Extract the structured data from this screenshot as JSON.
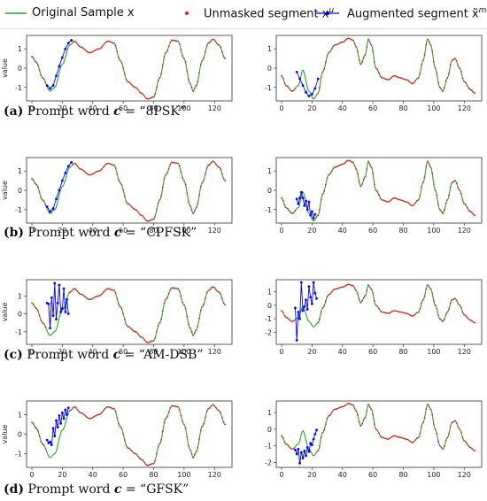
{
  "legend": {
    "original": "Original Sample x",
    "unmasked": "Unmasked segment x",
    "unmasked_sup": "u",
    "augmented": "Augmented segment x̃",
    "augmented_sup": "m"
  },
  "colors": {
    "original": "#2ca02c",
    "unmasked": "#d62728",
    "augmented": "#0000ff"
  },
  "captions": [
    {
      "label": "(a)",
      "text": "Prompt word",
      "var": "c",
      "value": "= “8PSK”"
    },
    {
      "label": "(b)",
      "text": "Prompt word",
      "var": "c",
      "value": "= “CPFSK”"
    },
    {
      "label": "(c)",
      "text": "Prompt word",
      "var": "c",
      "value": "= “AM-DSB”"
    },
    {
      "label": "(d)",
      "text": "Prompt word",
      "var": "c",
      "value": "= “GFSK”"
    }
  ],
  "chart_data": [
    {
      "type": "line",
      "row": 0,
      "col": 0,
      "ylabel": "value",
      "xticks": [
        0,
        20,
        40,
        60,
        80,
        100,
        120
      ],
      "yticks": [
        -1,
        0,
        1
      ],
      "ylim": [
        -1.7,
        1.7
      ],
      "base": "left",
      "aug": [
        [
          10,
          -0.9
        ],
        [
          12,
          -1.05
        ],
        [
          14,
          -0.9
        ],
        [
          16,
          -0.4
        ],
        [
          18,
          0.1
        ],
        [
          20,
          0.55
        ],
        [
          22,
          1.0
        ],
        [
          24,
          1.3
        ],
        [
          26,
          1.45
        ]
      ]
    },
    {
      "type": "line",
      "row": 0,
      "col": 1,
      "ylabel": "",
      "xticks": [
        0,
        20,
        40,
        60,
        80,
        100,
        120
      ],
      "yticks": [
        -1,
        0,
        1
      ],
      "ylim": [
        -1.7,
        1.7
      ],
      "base": "right",
      "aug": [
        [
          10,
          -0.2
        ],
        [
          12,
          -0.55
        ],
        [
          14,
          -0.9
        ],
        [
          16,
          -1.25
        ],
        [
          18,
          -1.45
        ],
        [
          20,
          -1.35
        ],
        [
          22,
          -1.05
        ],
        [
          24,
          -0.55
        ]
      ]
    },
    {
      "type": "line",
      "row": 1,
      "col": 0,
      "ylabel": "value",
      "xticks": [
        0,
        20,
        40,
        60,
        80,
        100,
        120
      ],
      "yticks": [
        -1,
        0,
        1
      ],
      "ylim": [
        -1.7,
        1.7
      ],
      "base": "left",
      "aug": [
        [
          10,
          -0.85
        ],
        [
          12,
          -1.1
        ],
        [
          14,
          -0.95
        ],
        [
          16,
          -0.45
        ],
        [
          18,
          0.0
        ],
        [
          20,
          0.5
        ],
        [
          22,
          0.9
        ],
        [
          24,
          1.25
        ],
        [
          26,
          1.45
        ]
      ]
    },
    {
      "type": "line",
      "row": 1,
      "col": 1,
      "ylabel": "",
      "xticks": [
        0,
        20,
        40,
        60,
        80,
        100,
        120
      ],
      "yticks": [
        -1,
        0,
        1
      ],
      "ylim": [
        -1.7,
        1.7
      ],
      "base": "right",
      "aug": [
        [
          10,
          -0.45
        ],
        [
          11,
          -0.7
        ],
        [
          12,
          -0.4
        ],
        [
          13,
          -0.1
        ],
        [
          14,
          -0.4
        ],
        [
          15,
          -0.8
        ],
        [
          16,
          -0.55
        ],
        [
          17,
          -1.0
        ],
        [
          18,
          -0.6
        ],
        [
          19,
          -1.3
        ],
        [
          20,
          -1.1
        ],
        [
          21,
          -1.45
        ],
        [
          22,
          -1.25
        ]
      ]
    },
    {
      "type": "line",
      "row": 2,
      "col": 0,
      "ylabel": "value",
      "xticks": [
        0,
        20,
        40,
        60,
        80,
        100,
        120
      ],
      "yticks": [
        -1,
        0,
        1
      ],
      "ylim": [
        -1.7,
        1.9
      ],
      "base": "left",
      "aug": [
        [
          10,
          0.6
        ],
        [
          11,
          0.55
        ],
        [
          12,
          -0.8
        ],
        [
          13,
          0.9
        ],
        [
          14,
          -0.1
        ],
        [
          15,
          1.7
        ],
        [
          16,
          -0.3
        ],
        [
          17,
          0.6
        ],
        [
          18,
          1.6
        ],
        [
          19,
          0.1
        ],
        [
          20,
          0.3
        ],
        [
          21,
          1.4
        ],
        [
          22,
          0.1
        ],
        [
          23,
          0.8
        ],
        [
          24,
          0.0
        ]
      ]
    },
    {
      "type": "line",
      "row": 2,
      "col": 1,
      "ylabel": "",
      "xticks": [
        0,
        20,
        40,
        60,
        80,
        100,
        120
      ],
      "yticks": [
        -2,
        -1,
        0,
        1
      ],
      "ylim": [
        -2.9,
        1.9
      ],
      "base": "right",
      "aug": [
        [
          9,
          -0.2
        ],
        [
          10,
          -2.6
        ],
        [
          11,
          -0.5
        ],
        [
          12,
          -1.0
        ],
        [
          13,
          1.7
        ],
        [
          14,
          -0.4
        ],
        [
          15,
          -0.1
        ],
        [
          16,
          0.4
        ],
        [
          17,
          -0.3
        ],
        [
          18,
          1.4
        ],
        [
          19,
          0.6
        ],
        [
          20,
          0.1
        ],
        [
          21,
          1.7
        ],
        [
          22,
          0.9
        ],
        [
          23,
          0.5
        ]
      ]
    },
    {
      "type": "line",
      "row": 3,
      "col": 0,
      "ylabel": "value",
      "xticks": [
        0,
        20,
        40,
        60,
        80,
        100,
        120
      ],
      "yticks": [
        -1,
        0,
        1
      ],
      "ylim": [
        -1.7,
        1.7
      ],
      "base": "left",
      "aug": [
        [
          10,
          -0.3
        ],
        [
          11,
          -0.45
        ],
        [
          12,
          -0.4
        ],
        [
          13,
          -0.55
        ],
        [
          14,
          0.3
        ],
        [
          15,
          -0.1
        ],
        [
          16,
          0.7
        ],
        [
          17,
          0.35
        ],
        [
          18,
          0.95
        ],
        [
          19,
          0.55
        ],
        [
          20,
          1.1
        ],
        [
          21,
          0.8
        ],
        [
          22,
          1.25
        ],
        [
          23,
          1.0
        ],
        [
          24,
          1.35
        ]
      ]
    },
    {
      "type": "line",
      "row": 3,
      "col": 1,
      "ylabel": "",
      "xticks": [
        0,
        20,
        40,
        60,
        80,
        100,
        120
      ],
      "yticks": [
        -2,
        -1,
        0,
        1
      ],
      "ylim": [
        -2.3,
        1.7
      ],
      "base": "right",
      "aug": [
        [
          9,
          -1.25
        ],
        [
          10,
          -1.5
        ],
        [
          11,
          -1.2
        ],
        [
          12,
          -2.05
        ],
        [
          13,
          -1.4
        ],
        [
          14,
          -1.75
        ],
        [
          15,
          -1.3
        ],
        [
          16,
          -1.6
        ],
        [
          17,
          -1.1
        ],
        [
          18,
          -1.35
        ],
        [
          19,
          -0.85
        ],
        [
          20,
          -0.95
        ],
        [
          21,
          -0.6
        ],
        [
          22,
          -0.3
        ],
        [
          23,
          -0.05
        ]
      ]
    }
  ]
}
